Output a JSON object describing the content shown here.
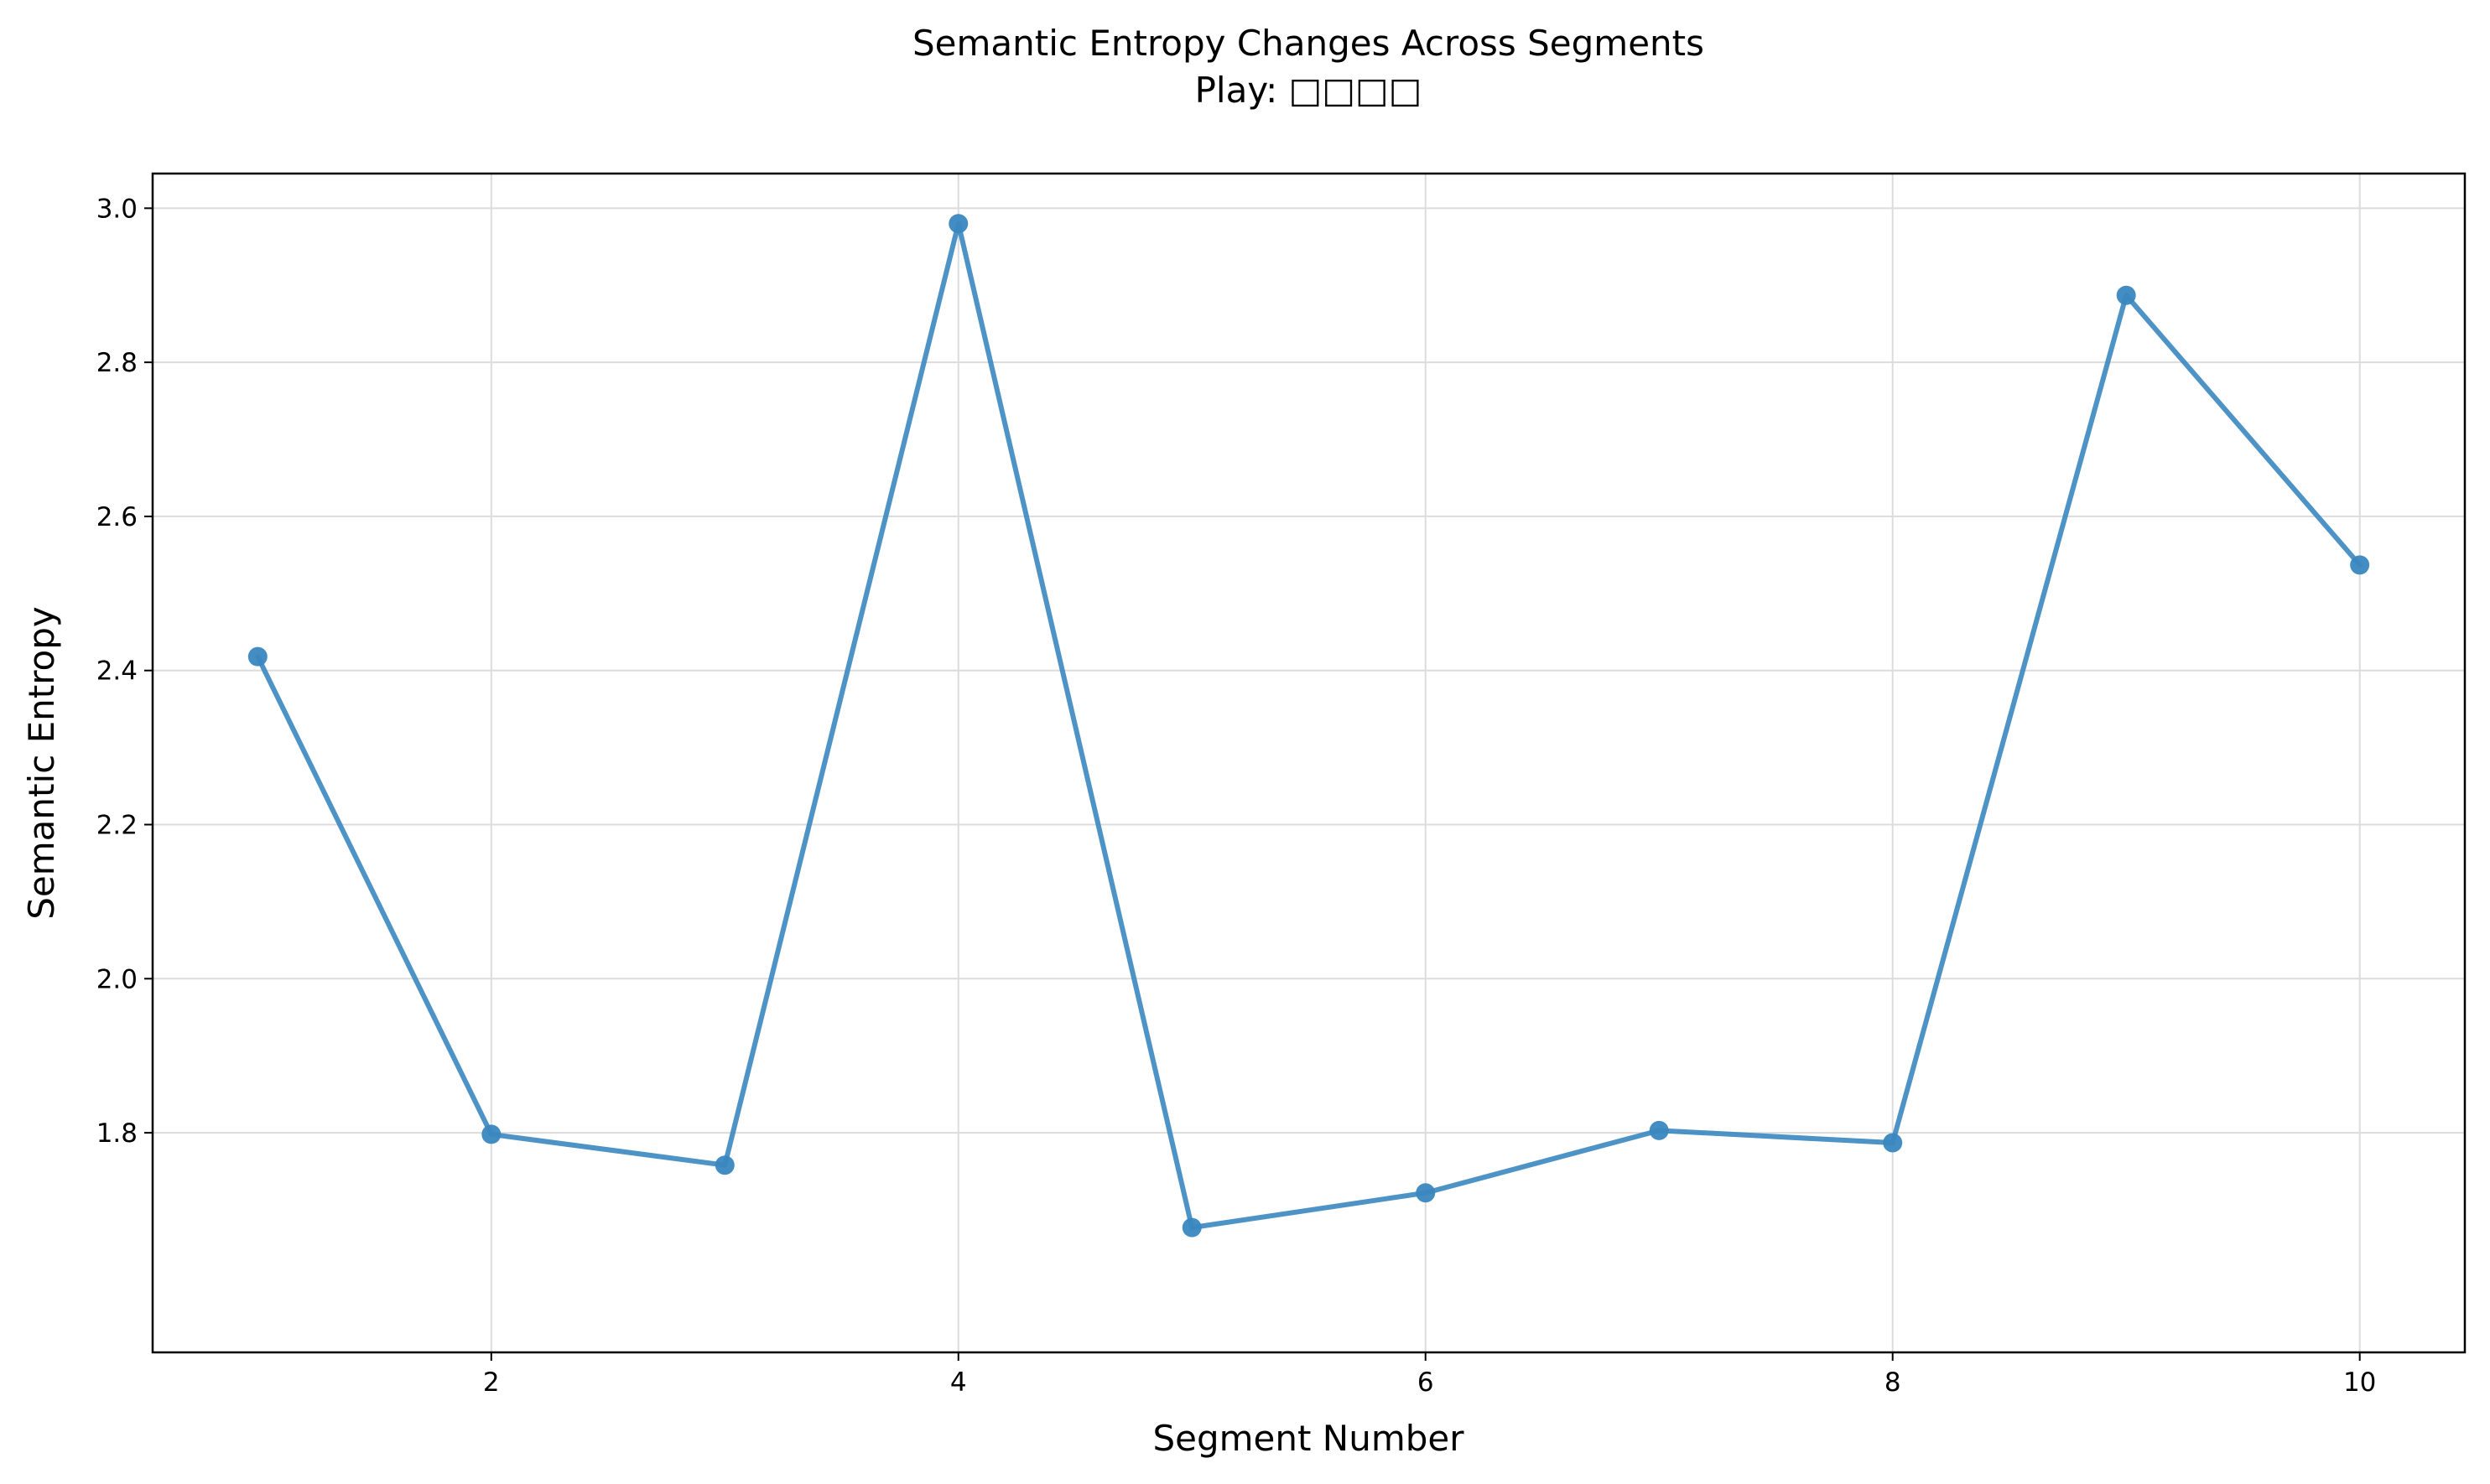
{
  "chart_data": {
    "type": "line",
    "title": "Semantic Entropy Changes Across Segments",
    "subtitle": "Play: □□□□",
    "xlabel": "Segment Number",
    "ylabel": "Semantic Entropy",
    "xlim": [
      0.55,
      10.45
    ],
    "ylim": [
      1.515,
      3.045
    ],
    "xticks": [
      2,
      4,
      6,
      8,
      10
    ],
    "yticks": [
      1.8,
      2.0,
      2.2,
      2.4,
      2.6,
      2.8,
      3.0
    ],
    "xtick_labels": [
      "2",
      "4",
      "6",
      "8",
      "10"
    ],
    "ytick_labels": [
      "1.8",
      "2.0",
      "2.2",
      "2.4",
      "2.6",
      "2.8",
      "3.0"
    ],
    "grid": true,
    "series": [
      {
        "color": "#3a87c0",
        "marker": "circle",
        "x": [
          1,
          2,
          3,
          4,
          5,
          6,
          7,
          8,
          9,
          10
        ],
        "y": [
          2.418,
          1.798,
          1.758,
          2.98,
          1.677,
          1.722,
          1.803,
          1.787,
          2.887,
          2.537
        ]
      }
    ]
  }
}
